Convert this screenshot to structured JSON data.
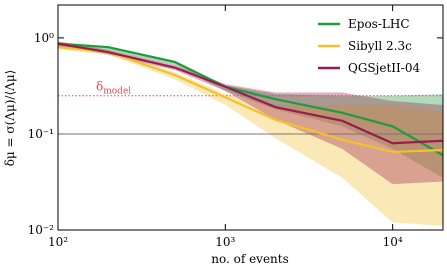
{
  "chart_data": {
    "type": "line",
    "xlabel": "no. of events",
    "ylabel": "δμ = σ(Λμ)/⟨Λμ⟩",
    "x": [
      100,
      200,
      500,
      1000,
      2000,
      5000,
      10000,
      20000
    ],
    "xscale": "log",
    "yscale": "log",
    "xlim": [
      100,
      20000
    ],
    "ylim": [
      0.01,
      2.2
    ],
    "xticks": [
      {
        "value": 100,
        "label": "10²"
      },
      {
        "value": 1000,
        "label": "10³"
      },
      {
        "value": 10000,
        "label": "10⁴"
      }
    ],
    "yticks": [
      {
        "value": 0.01,
        "label": "10⁻²"
      },
      {
        "value": 0.1,
        "label": "10⁻¹"
      },
      {
        "value": 1,
        "label": "10⁰"
      }
    ],
    "legend": "upper right",
    "series": [
      {
        "name": "Epos-LHC",
        "color": "#1f9a3c",
        "values": [
          0.87,
          0.8,
          0.56,
          0.31,
          0.23,
          0.166,
          0.12,
          0.06
        ],
        "upper": [
          0.9,
          0.82,
          0.58,
          0.32,
          0.26,
          0.25,
          0.25,
          0.26
        ],
        "lower": [
          0.82,
          0.74,
          0.52,
          0.28,
          0.18,
          0.12,
          0.07,
          0.035
        ]
      },
      {
        "name": "Sibyll 2.3c",
        "color": "#f2c12e",
        "values": [
          0.8,
          0.71,
          0.41,
          0.24,
          0.14,
          0.087,
          0.065,
          0.068
        ],
        "upper": [
          0.84,
          0.75,
          0.44,
          0.26,
          0.2,
          0.2,
          0.2,
          0.17
        ],
        "lower": [
          0.76,
          0.67,
          0.37,
          0.2,
          0.09,
          0.035,
          0.012,
          0.011
        ]
      },
      {
        "name": "QGSjetII-04",
        "color": "#9b1c4b",
        "values": [
          0.87,
          0.71,
          0.49,
          0.31,
          0.19,
          0.137,
          0.08,
          0.085
        ],
        "upper": [
          0.92,
          0.75,
          0.52,
          0.33,
          0.27,
          0.27,
          0.22,
          0.2
        ],
        "lower": [
          0.82,
          0.67,
          0.46,
          0.28,
          0.14,
          0.07,
          0.03,
          0.032
        ]
      }
    ],
    "hlines": [
      {
        "value": 0.25,
        "color": "#e8474c",
        "style": "dotted",
        "label": "δ",
        "label_sub": "model"
      },
      {
        "value": 0.1,
        "color": "#777777",
        "style": "solid"
      }
    ]
  }
}
